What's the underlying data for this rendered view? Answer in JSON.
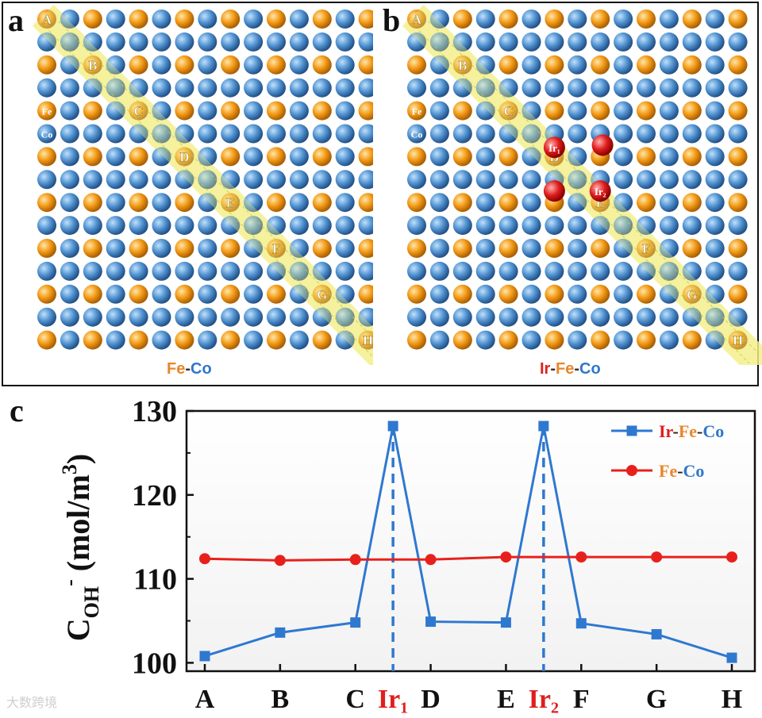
{
  "panels": {
    "a": {
      "letter": "a",
      "caption_parts": [
        "Fe",
        "-",
        "Co"
      ],
      "element_labels": [
        "Fe",
        "Co"
      ],
      "site_labels": [
        "A",
        "B",
        "C",
        "D",
        "E",
        "F",
        "G",
        "H"
      ]
    },
    "b": {
      "letter": "b",
      "caption_parts": [
        "Ir",
        "-",
        "Fe",
        "-",
        "Co"
      ],
      "element_labels": [
        "Fe",
        "Co"
      ],
      "site_labels": [
        "A",
        "B",
        "C",
        "D",
        "E",
        "F",
        "G",
        "H"
      ],
      "ir_labels": [
        "Ir₁",
        "Ir₂"
      ]
    },
    "c": {
      "letter": "c"
    }
  },
  "colors": {
    "fe": "#f2960f",
    "co": "#3f86c8",
    "ir": "#e01e1e",
    "series_ir_fe_co": "#2f78d0",
    "series_fe_co": "#e8201c",
    "highlight": "#f4f08a"
  },
  "watermark": "大数跨境",
  "chart_data": {
    "type": "line",
    "ylabel_main": "C",
    "ylabel_sub": "OH",
    "ylabel_sup": "-",
    "ylabel_units": " (mol/m",
    "ylabel_units_sup": "3",
    "ylabel_close": ")",
    "ylim": [
      99,
      130
    ],
    "yticks": [
      100,
      110,
      120,
      130
    ],
    "x_ticks": [
      {
        "label": "A",
        "pos": 0,
        "red": false
      },
      {
        "label": "B",
        "pos": 1,
        "red": false
      },
      {
        "label": "C",
        "pos": 2,
        "red": false
      },
      {
        "label": "Ir₁",
        "pos": 2.5,
        "red": true
      },
      {
        "label": "D",
        "pos": 3,
        "red": false
      },
      {
        "label": "E",
        "pos": 4,
        "red": false
      },
      {
        "label": "Ir₂",
        "pos": 4.5,
        "red": true
      },
      {
        "label": "F",
        "pos": 5,
        "red": false
      },
      {
        "label": "G",
        "pos": 6,
        "red": false
      },
      {
        "label": "H",
        "pos": 7,
        "red": false
      }
    ],
    "xlim": [
      -0.2,
      7.2
    ],
    "vlines": [
      2.5,
      4.5
    ],
    "series": [
      {
        "name": "Ir-Fe-Co",
        "legend_parts": [
          "Ir",
          "-",
          "Fe",
          "-",
          "Co"
        ],
        "marker": "square",
        "x": [
          0,
          1,
          2,
          2.5,
          3,
          4,
          4.5,
          5,
          6,
          7
        ],
        "y": [
          100.8,
          103.6,
          104.8,
          128.2,
          104.9,
          104.8,
          128.2,
          104.7,
          103.4,
          100.6
        ]
      },
      {
        "name": "Fe-Co",
        "legend_parts": [
          "Fe",
          "-",
          "Co"
        ],
        "marker": "circle",
        "x": [
          0,
          1,
          2,
          3,
          4,
          5,
          6,
          7
        ],
        "y": [
          112.4,
          112.2,
          112.3,
          112.3,
          112.6,
          112.6,
          112.6,
          112.6
        ]
      }
    ]
  }
}
